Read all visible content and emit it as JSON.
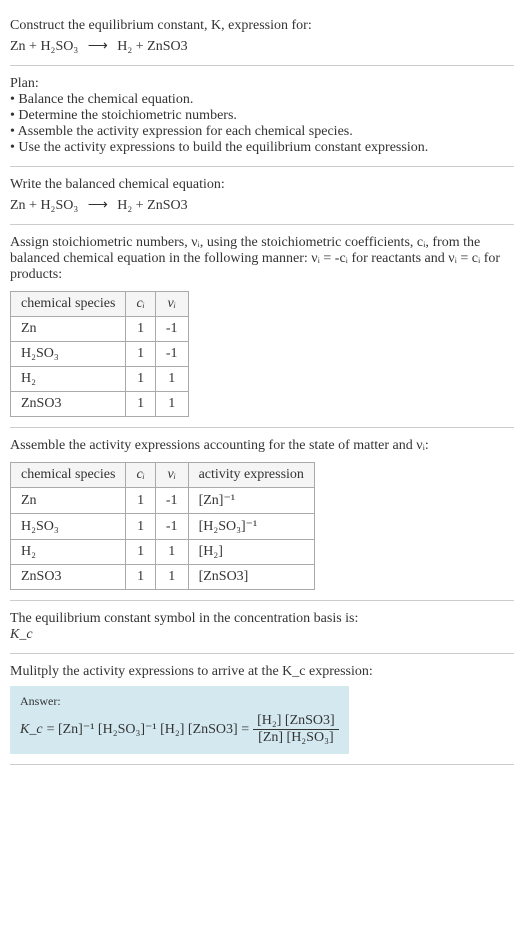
{
  "header": {
    "line1": "Construct the equilibrium constant, K, expression for:",
    "equation_lhs": "Zn + H₂SO₃",
    "equation_arrow": "⟶",
    "equation_rhs": "H₂ + ZnSO3"
  },
  "plan": {
    "title": "Plan:",
    "items": [
      "• Balance the chemical equation.",
      "• Determine the stoichiometric numbers.",
      "• Assemble the activity expression for each chemical species.",
      "• Use the activity expressions to build the equilibrium constant expression."
    ]
  },
  "balanced": {
    "title": "Write the balanced chemical equation:",
    "equation_lhs": "Zn + H₂SO₃",
    "equation_arrow": "⟶",
    "equation_rhs": "H₂ + ZnSO3"
  },
  "stoich": {
    "desc_p1": "Assign stoichiometric numbers, νᵢ, using the stoichiometric coefficients, cᵢ, from the balanced chemical equation in the following manner: νᵢ = -cᵢ for reactants and νᵢ = cᵢ for products:",
    "table": {
      "columns": [
        "chemical species",
        "cᵢ",
        "νᵢ"
      ],
      "rows": [
        [
          "Zn",
          "1",
          "-1"
        ],
        [
          "H₂SO₃",
          "1",
          "-1"
        ],
        [
          "H₂",
          "1",
          "1"
        ],
        [
          "ZnSO3",
          "1",
          "1"
        ]
      ]
    }
  },
  "activity": {
    "desc": "Assemble the activity expressions accounting for the state of matter and νᵢ:",
    "table": {
      "columns": [
        "chemical species",
        "cᵢ",
        "νᵢ",
        "activity expression"
      ],
      "rows": [
        [
          "Zn",
          "1",
          "-1",
          "[Zn]⁻¹"
        ],
        [
          "H₂SO₃",
          "1",
          "-1",
          "[H₂SO₃]⁻¹"
        ],
        [
          "H₂",
          "1",
          "1",
          "[H₂]"
        ],
        [
          "ZnSO3",
          "1",
          "1",
          "[ZnSO3]"
        ]
      ]
    }
  },
  "symbol": {
    "desc": "The equilibrium constant symbol in the concentration basis is:",
    "value": "K_c"
  },
  "multiply": {
    "desc": "Mulitply the activity expressions to arrive at the K_c expression:"
  },
  "answer": {
    "label": "Answer:",
    "kc": "K_c",
    "expr_left": "= [Zn]⁻¹ [H₂SO₃]⁻¹ [H₂] [ZnSO3] =",
    "frac_num": "[H₂] [ZnSO3]",
    "frac_den": "[Zn] [H₂SO₃]"
  },
  "colors": {
    "answer_bg": "#d4e8f0",
    "border": "#ccc",
    "table_border": "#aaa"
  }
}
